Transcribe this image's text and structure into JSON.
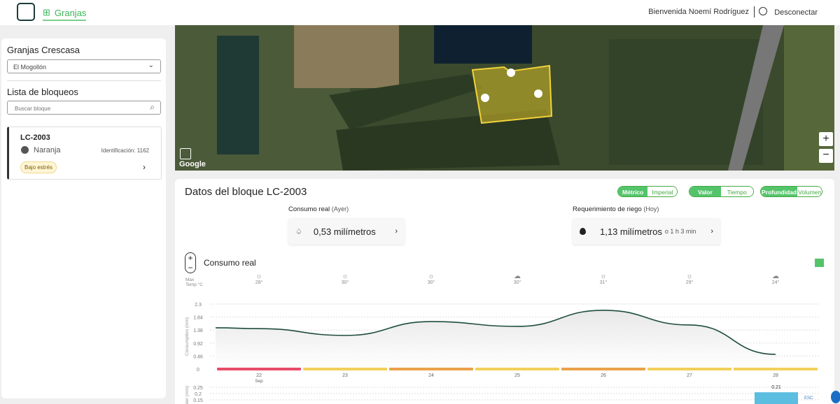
{
  "header": {
    "nav_label": "Granjas",
    "welcome": "Bienvenida Noemí Rodríguez",
    "logout": "Desconectar"
  },
  "sidebar": {
    "farm_title": "Granjas Crescasa",
    "farm_select": "El Mogollón",
    "list_title": "Lista de bloqueos",
    "search_placeholder": "Buscar bloque",
    "blocks": [
      {
        "name": "LC-2003",
        "crop": "Naranja",
        "id_label": "Identificación: 1162",
        "badge": "Bajo estrés"
      }
    ]
  },
  "map": {
    "attribution": "Google",
    "zoom_in": "+",
    "zoom_out": "−"
  },
  "panel": {
    "title": "Datos del bloque LC-2003",
    "toggles": [
      {
        "a": "Métrico",
        "b": "Imperial",
        "active": "a"
      },
      {
        "a": "Valor",
        "b": "Tiempo",
        "active": "a"
      },
      {
        "a": "Profundidad",
        "b": "Volumen",
        "active": "a"
      }
    ],
    "kpi1": {
      "label": "Consumo real",
      "sub": "(Ayer)",
      "value": "0,53 milímetros"
    },
    "kpi2": {
      "label": "Requerimiento de riego",
      "sub": "(Hoy)",
      "value": "1,13 milímetros",
      "extra": "o 1 h 3 min"
    },
    "chart_title": "Consumo real",
    "temp_label_1": "Max",
    "temp_label_2": "Temp °C"
  },
  "weather": [
    {
      "icon": "sun-icon",
      "t": "28°"
    },
    {
      "icon": "sun-icon",
      "t": "30°"
    },
    {
      "icon": "sun-icon",
      "t": "30°"
    },
    {
      "icon": "cloud-icon",
      "t": "30°"
    },
    {
      "icon": "sun-icon",
      "t": "31°"
    },
    {
      "icon": "sun-icon",
      "t": "29°"
    },
    {
      "icon": "cloud-icon",
      "t": "24°"
    }
  ],
  "chart_data": [
    {
      "type": "area",
      "ylabel": "Consumption (mm)",
      "x": [
        "22",
        "23",
        "24",
        "25",
        "26",
        "27",
        "28"
      ],
      "x_sub": "Sep",
      "yticks": [
        "0",
        "0.46",
        "0.92",
        "1.38",
        "1.84",
        "2.3"
      ],
      "ylim": [
        0,
        2.3
      ],
      "series": [
        {
          "values": [
            1.43,
            1.19,
            1.68,
            1.51,
            2.08,
            1.56,
            0.52
          ],
          "color": "#1d4d3a"
        }
      ],
      "stress_colors": [
        "#e84a6a",
        "#f2cf5a",
        "#eba14a",
        "#f2cf5a",
        "#eba14a",
        "#f2cf5a",
        "#f2cf5a"
      ],
      "grid": true
    },
    {
      "type": "bar",
      "ylabel": "ater (mm)",
      "yticks": [
        "0.15",
        "0.2",
        "0.25"
      ],
      "x": [
        "28"
      ],
      "values": [
        0.21
      ],
      "data_labels": [
        "0.21"
      ],
      "color": "#5bbde0",
      "legend": "ESC"
    }
  ]
}
